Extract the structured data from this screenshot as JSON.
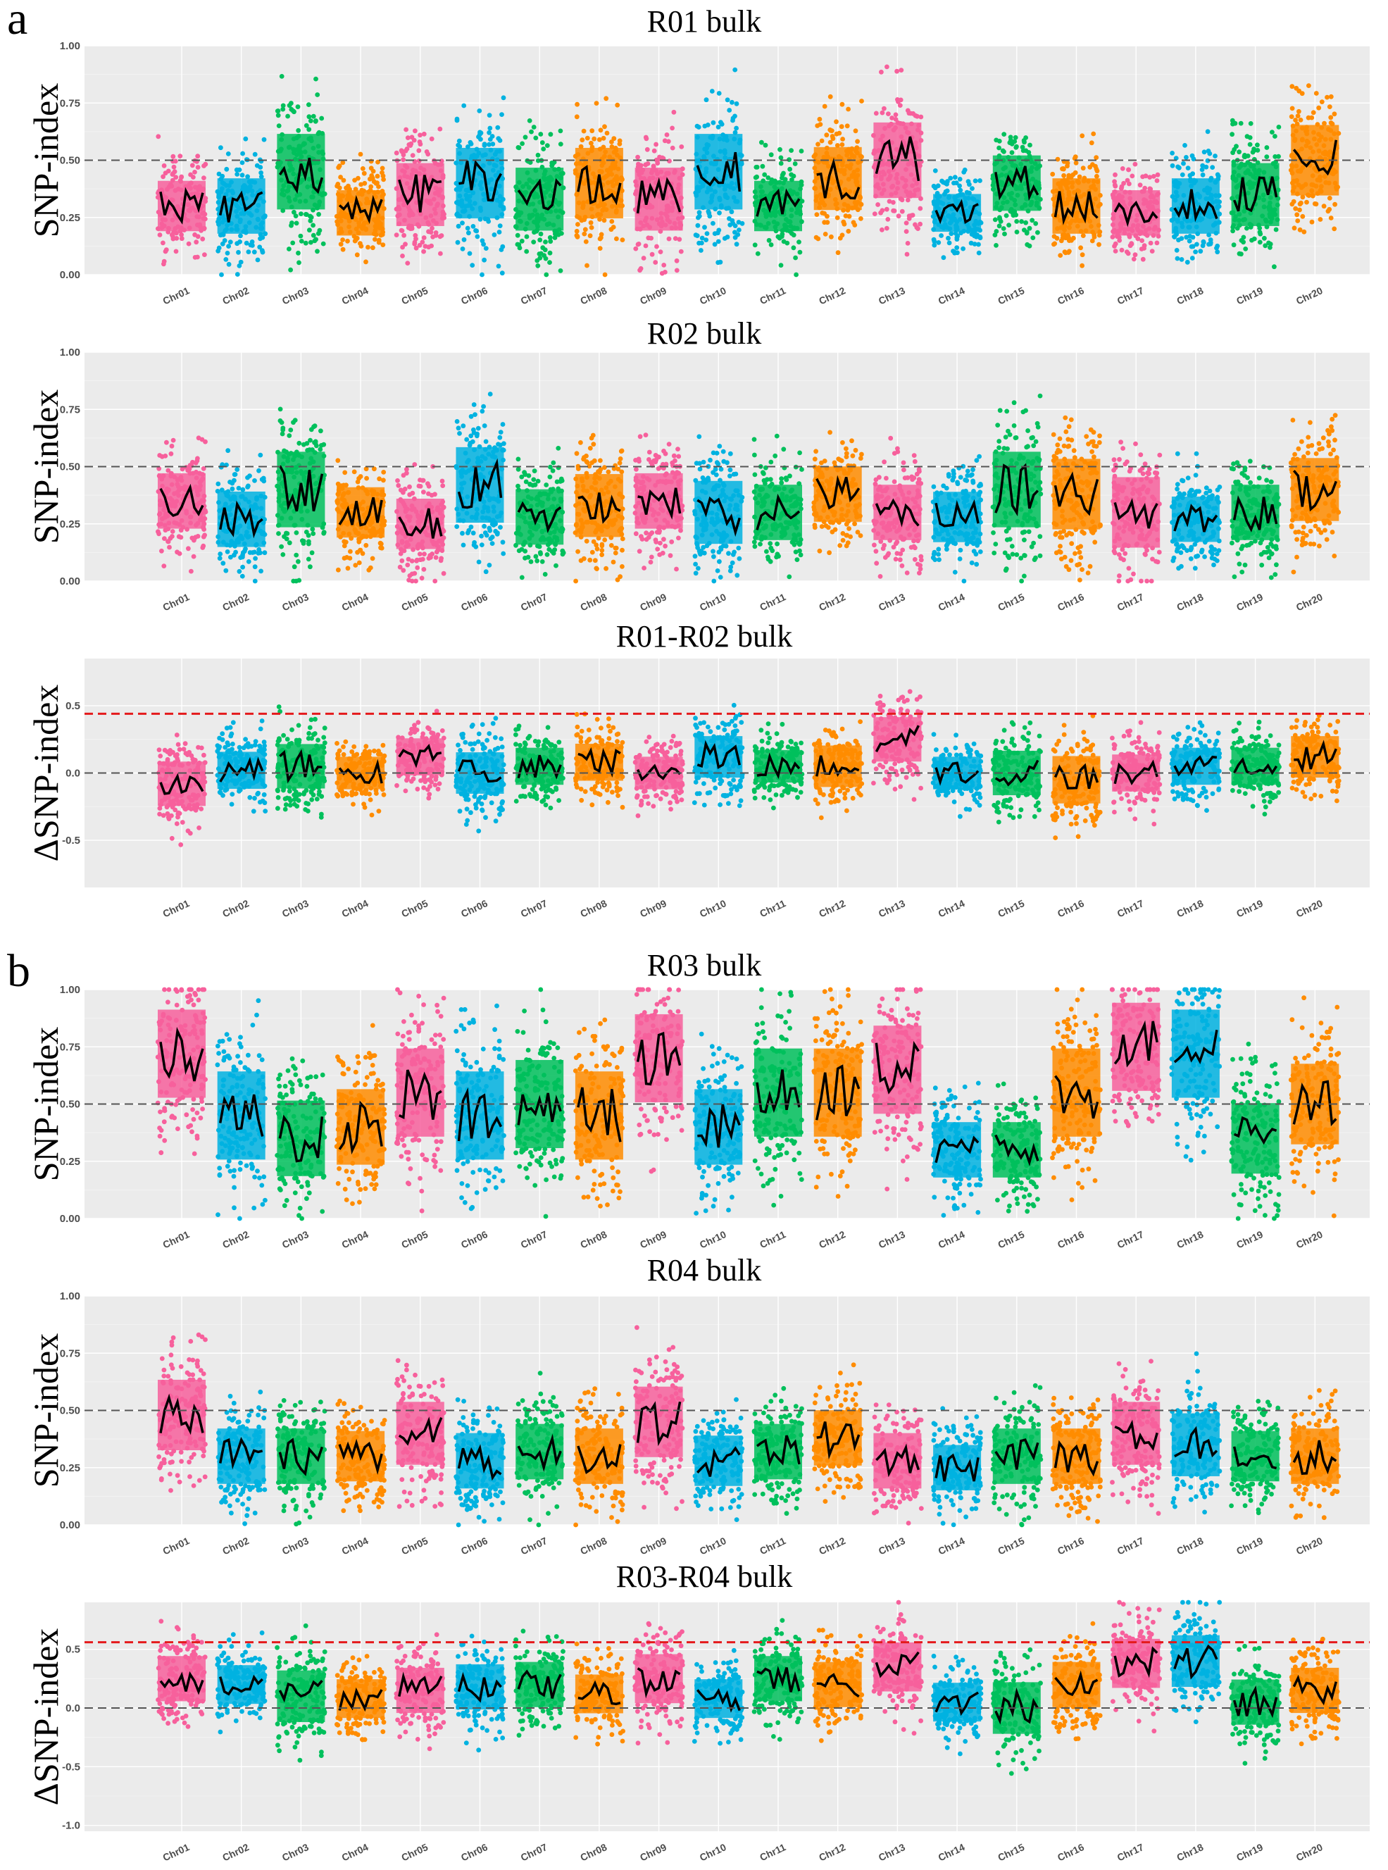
{
  "figure": {
    "panel_labels": [
      "a",
      "b"
    ],
    "colors": [
      "#f7609c",
      "#00b2e0",
      "#00c05c",
      "#ff8c00"
    ],
    "threshold_color": "#e41a1c",
    "trend_color": "#000000"
  },
  "chart_data": [
    {
      "type": "scatter",
      "title": "R01 bulk",
      "ylabel": "SNP-index",
      "ylim": [
        0,
        1
      ],
      "yticks": [
        "0.00",
        "0.25",
        "0.50",
        "0.75",
        "1.00"
      ],
      "ytick_values": [
        0,
        0.25,
        0.5,
        0.75,
        1
      ],
      "categories": [
        "Chr01",
        "Chr02",
        "Chr03",
        "Chr04",
        "Chr05",
        "Chr06",
        "Chr07",
        "Chr08",
        "Chr09",
        "Chr10",
        "Chr11",
        "Chr12",
        "Chr13",
        "Chr14",
        "Chr15",
        "Chr16",
        "Chr17",
        "Chr18",
        "Chr19",
        "Chr20"
      ],
      "reference_lines": [
        {
          "y": 0.5,
          "style": "dashed",
          "color": "gray"
        }
      ],
      "chromosome_mean_index": [
        0.3,
        0.3,
        0.45,
        0.27,
        0.35,
        0.4,
        0.33,
        0.4,
        0.33,
        0.45,
        0.3,
        0.42,
        0.5,
        0.27,
        0.4,
        0.3,
        0.27,
        0.3,
        0.35,
        0.5
      ],
      "chromosome_spread": [
        0.2,
        0.22,
        0.3,
        0.18,
        0.25,
        0.28,
        0.25,
        0.28,
        0.25,
        0.3,
        0.2,
        0.25,
        0.3,
        0.15,
        0.22,
        0.22,
        0.18,
        0.22,
        0.25,
        0.28
      ]
    },
    {
      "type": "scatter",
      "title": "R02 bulk",
      "ylabel": "SNP-index",
      "ylim": [
        0,
        1
      ],
      "yticks": [
        "0.00",
        "0.25",
        "0.50",
        "0.75",
        "1.00"
      ],
      "ytick_values": [
        0,
        0.25,
        0.5,
        0.75,
        1
      ],
      "categories": [
        "Chr01",
        "Chr02",
        "Chr03",
        "Chr04",
        "Chr05",
        "Chr06",
        "Chr07",
        "Chr08",
        "Chr09",
        "Chr10",
        "Chr11",
        "Chr12",
        "Chr13",
        "Chr14",
        "Chr15",
        "Chr16",
        "Chr17",
        "Chr18",
        "Chr19",
        "Chr20"
      ],
      "reference_lines": [
        {
          "y": 0.5,
          "style": "dashed",
          "color": "gray"
        }
      ],
      "chromosome_mean_index": [
        0.35,
        0.27,
        0.4,
        0.3,
        0.25,
        0.42,
        0.28,
        0.33,
        0.35,
        0.3,
        0.3,
        0.38,
        0.3,
        0.28,
        0.4,
        0.38,
        0.3,
        0.27,
        0.3,
        0.4
      ],
      "chromosome_spread": [
        0.22,
        0.22,
        0.3,
        0.2,
        0.2,
        0.3,
        0.22,
        0.25,
        0.22,
        0.25,
        0.22,
        0.22,
        0.22,
        0.2,
        0.3,
        0.28,
        0.28,
        0.18,
        0.22,
        0.25
      ]
    },
    {
      "type": "scatter",
      "title": "R01-R02 bulk",
      "ylabel": "ΔSNP-index",
      "ylim": [
        -0.85,
        0.85
      ],
      "yticks": [
        "-0.5",
        "0.0",
        "0.5"
      ],
      "ytick_values": [
        -0.5,
        0,
        0.5
      ],
      "categories": [
        "Chr01",
        "Chr02",
        "Chr03",
        "Chr04",
        "Chr05",
        "Chr06",
        "Chr07",
        "Chr08",
        "Chr09",
        "Chr10",
        "Chr11",
        "Chr12",
        "Chr13",
        "Chr14",
        "Chr15",
        "Chr16",
        "Chr17",
        "Chr18",
        "Chr19",
        "Chr20"
      ],
      "reference_lines": [
        {
          "y": 0.0,
          "style": "dashed",
          "color": "gray"
        },
        {
          "y": 0.44,
          "style": "dashed",
          "color": "red"
        }
      ],
      "chromosome_mean_index": [
        -0.08,
        0.02,
        0.05,
        0.0,
        0.12,
        0.0,
        0.05,
        0.08,
        0.0,
        0.12,
        0.05,
        0.05,
        0.25,
        0.0,
        0.0,
        -0.05,
        0.0,
        0.05,
        0.05,
        0.12
      ],
      "chromosome_spread": [
        0.3,
        0.25,
        0.3,
        0.22,
        0.25,
        0.28,
        0.25,
        0.25,
        0.22,
        0.28,
        0.22,
        0.28,
        0.3,
        0.22,
        0.3,
        0.32,
        0.25,
        0.25,
        0.25,
        0.28
      ]
    },
    {
      "type": "scatter",
      "title": "R03 bulk",
      "ylabel": "SNP-index",
      "ylim": [
        0,
        1
      ],
      "yticks": [
        "0.00",
        "0.25",
        "0.50",
        "0.75",
        "1.00"
      ],
      "ytick_values": [
        0,
        0.25,
        0.5,
        0.75,
        1
      ],
      "categories": [
        "Chr01",
        "Chr02",
        "Chr03",
        "Chr04",
        "Chr05",
        "Chr06",
        "Chr07",
        "Chr08",
        "Chr09",
        "Chr10",
        "Chr11",
        "Chr12",
        "Chr13",
        "Chr14",
        "Chr15",
        "Chr16",
        "Chr17",
        "Chr18",
        "Chr19",
        "Chr20"
      ],
      "reference_lines": [
        {
          "y": 0.5,
          "style": "dashed",
          "color": "gray"
        }
      ],
      "chromosome_mean_index": [
        0.72,
        0.45,
        0.35,
        0.4,
        0.55,
        0.45,
        0.5,
        0.45,
        0.7,
        0.4,
        0.55,
        0.55,
        0.65,
        0.3,
        0.3,
        0.55,
        0.75,
        0.72,
        0.35,
        0.5
      ],
      "chromosome_spread": [
        0.35,
        0.35,
        0.3,
        0.3,
        0.35,
        0.35,
        0.35,
        0.35,
        0.35,
        0.3,
        0.35,
        0.35,
        0.35,
        0.22,
        0.22,
        0.35,
        0.35,
        0.35,
        0.28,
        0.32
      ]
    },
    {
      "type": "scatter",
      "title": "R04 bulk",
      "ylabel": "SNP-index",
      "ylim": [
        0,
        1
      ],
      "yticks": [
        "0.00",
        "0.25",
        "0.50",
        "0.75",
        "1.00"
      ],
      "ytick_values": [
        0,
        0.25,
        0.5,
        0.75,
        1
      ],
      "categories": [
        "Chr01",
        "Chr02",
        "Chr03",
        "Chr04",
        "Chr05",
        "Chr06",
        "Chr07",
        "Chr08",
        "Chr09",
        "Chr10",
        "Chr11",
        "Chr12",
        "Chr13",
        "Chr14",
        "Chr15",
        "Chr16",
        "Chr17",
        "Chr18",
        "Chr19",
        "Chr20"
      ],
      "reference_lines": [
        {
          "y": 0.5,
          "style": "dashed",
          "color": "gray"
        }
      ],
      "chromosome_mean_index": [
        0.48,
        0.3,
        0.3,
        0.3,
        0.4,
        0.28,
        0.32,
        0.3,
        0.45,
        0.28,
        0.32,
        0.38,
        0.28,
        0.25,
        0.3,
        0.3,
        0.4,
        0.35,
        0.3,
        0.3
      ],
      "chromosome_spread": [
        0.28,
        0.22,
        0.22,
        0.2,
        0.25,
        0.22,
        0.22,
        0.22,
        0.28,
        0.2,
        0.22,
        0.22,
        0.22,
        0.18,
        0.22,
        0.22,
        0.25,
        0.25,
        0.2,
        0.22
      ]
    },
    {
      "type": "scatter",
      "title": "R03-R04 bulk",
      "ylabel": "ΔSNP-index",
      "ylim": [
        -1.05,
        0.9
      ],
      "yticks": [
        "-1.0",
        "-0.5",
        "0.0",
        "0.5"
      ],
      "ytick_values": [
        -1.0,
        -0.5,
        0,
        0.5
      ],
      "categories": [
        "Chr01",
        "Chr02",
        "Chr03",
        "Chr04",
        "Chr05",
        "Chr06",
        "Chr07",
        "Chr08",
        "Chr09",
        "Chr10",
        "Chr11",
        "Chr12",
        "Chr13",
        "Chr14",
        "Chr15",
        "Chr16",
        "Chr17",
        "Chr18",
        "Chr19",
        "Chr20"
      ],
      "reference_lines": [
        {
          "y": 0.0,
          "style": "dashed",
          "color": "gray"
        },
        {
          "y": 0.56,
          "style": "dashed",
          "color": "red"
        }
      ],
      "chromosome_mean_index": [
        0.25,
        0.2,
        0.1,
        0.08,
        0.15,
        0.18,
        0.2,
        0.12,
        0.25,
        0.08,
        0.25,
        0.2,
        0.35,
        0.05,
        0.0,
        0.2,
        0.38,
        0.4,
        0.05,
        0.15
      ],
      "chromosome_spread": [
        0.35,
        0.3,
        0.4,
        0.3,
        0.35,
        0.35,
        0.35,
        0.3,
        0.38,
        0.3,
        0.35,
        0.35,
        0.38,
        0.3,
        0.4,
        0.35,
        0.38,
        0.4,
        0.35,
        0.35
      ]
    }
  ]
}
